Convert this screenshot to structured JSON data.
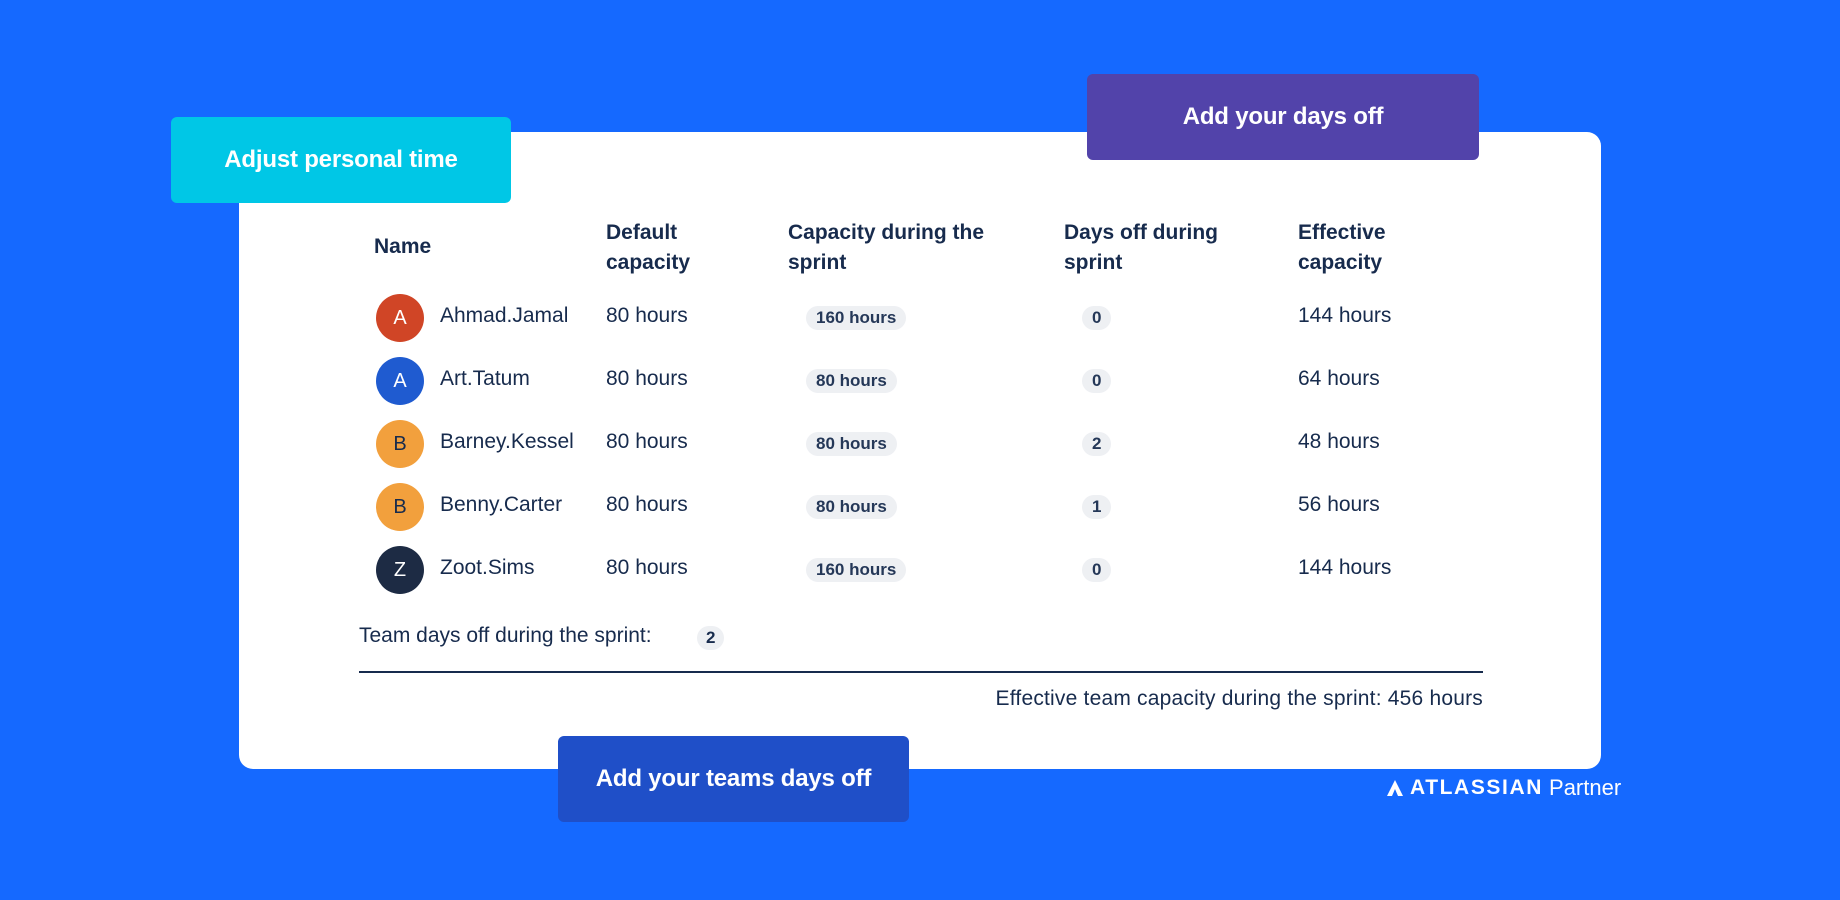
{
  "callouts": {
    "personal": "Adjust personal time",
    "days_off": "Add your days off",
    "teams": "Add your teams days off"
  },
  "table": {
    "headers": {
      "name": "Name",
      "default_1": "Default",
      "default_2": "capacity",
      "capacity_1": "Capacity during the",
      "capacity_2": "sprint",
      "daysoff_1": "Days off during",
      "daysoff_2": "sprint",
      "effective_1": "Effective",
      "effective_2": "capacity"
    },
    "rows": [
      {
        "initial": "A",
        "name": "Ahmad.Jamal",
        "default": "80 hours",
        "capacity": "160 hours",
        "days_off": "0",
        "effective": "144 hours"
      },
      {
        "initial": "A",
        "name": "Art.Tatum",
        "default": "80 hours",
        "capacity": "80 hours",
        "days_off": "0",
        "effective": "64 hours"
      },
      {
        "initial": "B",
        "name": "Barney.Kessel",
        "default": "80 hours",
        "capacity": "80 hours",
        "days_off": "2",
        "effective": "48 hours"
      },
      {
        "initial": "B",
        "name": "Benny.Carter",
        "default": "80 hours",
        "capacity": "80 hours",
        "days_off": "1",
        "effective": "56 hours"
      },
      {
        "initial": "Z",
        "name": "Zoot.Sims",
        "default": "80 hours",
        "capacity": "160 hours",
        "days_off": "0",
        "effective": "144 hours"
      }
    ]
  },
  "avatar_colors": [
    "#D04526",
    "#1F5BD0",
    "#F2A03D",
    "#F2A03D",
    "#1D2B44"
  ],
  "avatar_text_colors": [
    "#FFFFFF",
    "#FFFFFF",
    "#172B4D",
    "#172B4D",
    "#FFFFFF"
  ],
  "summary": {
    "team_days_label": "Team days off during the sprint:",
    "team_days_value": "2",
    "effective_team": "Effective team capacity during the sprint: 456 hours"
  },
  "partner": {
    "brand": "ATLASSIAN",
    "suffix": "Partner"
  }
}
